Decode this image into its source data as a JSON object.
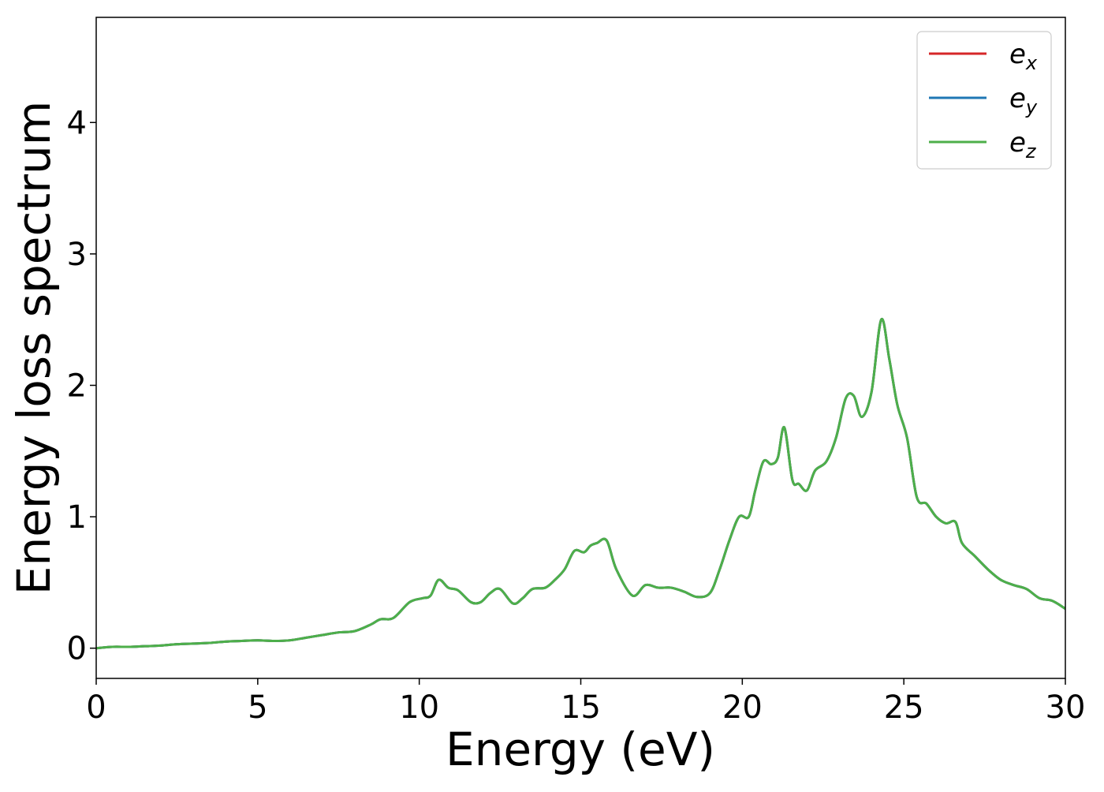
{
  "chart_data": {
    "type": "line",
    "title": "",
    "xlabel": "Energy (eV)",
    "ylabel": "Energy loss spectrum",
    "xlim": [
      0,
      30
    ],
    "ylim": [
      -0.23,
      4.8
    ],
    "xticks": [
      0,
      5,
      10,
      15,
      20,
      25,
      30
    ],
    "yticks": [
      0,
      1,
      2,
      3,
      4
    ],
    "grid": false,
    "legend_position": "top-right",
    "legend": [
      {
        "base": "e",
        "sub": "x",
        "color": "#d62728"
      },
      {
        "base": "e",
        "sub": "y",
        "color": "#1f77b4"
      },
      {
        "base": "e",
        "sub": "z",
        "color": "#4daf4a"
      }
    ],
    "series": [
      {
        "name": "e_x",
        "color": "#d62728",
        "x": [
          0,
          0.5,
          1,
          1.5,
          2,
          2.5,
          3,
          3.5,
          4,
          4.5,
          5,
          5.5,
          6,
          6.5,
          7,
          7.5,
          8,
          8.5,
          8.8,
          9.2,
          9.7,
          10.1,
          10.35,
          10.6,
          10.9,
          11.2,
          11.6,
          11.9,
          12.2,
          12.5,
          12.9,
          13.2,
          13.5,
          13.9,
          14.2,
          14.5,
          14.8,
          15.1,
          15.3,
          15.5,
          15.8,
          16.1,
          16.6,
          17.0,
          17.4,
          17.8,
          18.2,
          18.6,
          19.0,
          19.3,
          19.6,
          19.9,
          20.2,
          20.4,
          20.65,
          20.9,
          21.1,
          21.3,
          21.55,
          21.75,
          22.0,
          22.25,
          22.6,
          22.9,
          23.2,
          23.45,
          23.7,
          24.0,
          24.3,
          24.55,
          24.8,
          25.1,
          25.4,
          25.7,
          26.0,
          26.3,
          26.6,
          26.8,
          27.2,
          27.6,
          28.0,
          28.4,
          28.8,
          29.2,
          29.6,
          30.0
        ],
        "values": [
          0.0,
          0.01,
          0.01,
          0.015,
          0.02,
          0.03,
          0.035,
          0.04,
          0.05,
          0.055,
          0.06,
          0.055,
          0.06,
          0.08,
          0.1,
          0.12,
          0.13,
          0.18,
          0.22,
          0.23,
          0.35,
          0.38,
          0.4,
          0.52,
          0.46,
          0.44,
          0.35,
          0.35,
          0.42,
          0.45,
          0.34,
          0.38,
          0.45,
          0.46,
          0.52,
          0.6,
          0.74,
          0.73,
          0.78,
          0.8,
          0.82,
          0.6,
          0.4,
          0.48,
          0.46,
          0.46,
          0.43,
          0.39,
          0.42,
          0.6,
          0.82,
          1.0,
          1.0,
          1.2,
          1.42,
          1.4,
          1.45,
          1.68,
          1.28,
          1.25,
          1.2,
          1.35,
          1.42,
          1.6,
          1.9,
          1.92,
          1.76,
          1.95,
          2.5,
          2.2,
          1.85,
          1.6,
          1.15,
          1.1,
          1.0,
          0.95,
          0.96,
          0.8,
          0.7,
          0.6,
          0.52,
          0.48,
          0.45,
          0.38,
          0.36,
          0.3
        ]
      },
      {
        "name": "e_y",
        "color": "#1f77b4",
        "x": [
          0,
          0.5,
          1,
          1.5,
          2,
          2.5,
          3,
          3.5,
          4,
          4.5,
          5,
          5.5,
          6,
          6.5,
          7,
          7.5,
          8,
          8.5,
          8.8,
          9.2,
          9.7,
          10.1,
          10.35,
          10.6,
          10.9,
          11.2,
          11.6,
          11.9,
          12.2,
          12.5,
          12.9,
          13.2,
          13.5,
          13.9,
          14.2,
          14.5,
          14.8,
          15.1,
          15.3,
          15.5,
          15.8,
          16.1,
          16.6,
          17.0,
          17.4,
          17.8,
          18.2,
          18.6,
          19.0,
          19.3,
          19.6,
          19.9,
          20.2,
          20.4,
          20.65,
          20.9,
          21.1,
          21.3,
          21.55,
          21.75,
          22.0,
          22.25,
          22.6,
          22.9,
          23.2,
          23.45,
          23.7,
          24.0,
          24.3,
          24.55,
          24.8,
          25.1,
          25.4,
          25.7,
          26.0,
          26.3,
          26.6,
          26.8,
          27.2,
          27.6,
          28.0,
          28.4,
          28.8,
          29.2,
          29.6,
          30.0
        ],
        "values": [
          0.0,
          0.01,
          0.01,
          0.015,
          0.02,
          0.03,
          0.035,
          0.04,
          0.05,
          0.055,
          0.06,
          0.055,
          0.06,
          0.08,
          0.1,
          0.12,
          0.13,
          0.18,
          0.22,
          0.23,
          0.35,
          0.38,
          0.4,
          0.52,
          0.46,
          0.44,
          0.35,
          0.35,
          0.42,
          0.45,
          0.34,
          0.38,
          0.45,
          0.46,
          0.52,
          0.6,
          0.74,
          0.73,
          0.78,
          0.8,
          0.82,
          0.6,
          0.4,
          0.48,
          0.46,
          0.46,
          0.43,
          0.39,
          0.42,
          0.6,
          0.82,
          1.0,
          1.0,
          1.2,
          1.42,
          1.4,
          1.45,
          1.68,
          1.28,
          1.25,
          1.2,
          1.35,
          1.42,
          1.6,
          1.9,
          1.92,
          1.76,
          1.95,
          2.5,
          2.2,
          1.85,
          1.6,
          1.15,
          1.1,
          1.0,
          0.95,
          0.96,
          0.8,
          0.7,
          0.6,
          0.52,
          0.48,
          0.45,
          0.38,
          0.36,
          0.3
        ]
      },
      {
        "name": "e_z",
        "color": "#4daf4a",
        "x": [
          0,
          0.5,
          1,
          1.5,
          2,
          2.5,
          3,
          3.5,
          4,
          4.5,
          5,
          5.5,
          6,
          6.5,
          7,
          7.5,
          8,
          8.5,
          8.8,
          9.2,
          9.7,
          10.1,
          10.35,
          10.6,
          10.9,
          11.2,
          11.6,
          11.9,
          12.2,
          12.5,
          12.9,
          13.2,
          13.5,
          13.9,
          14.2,
          14.5,
          14.8,
          15.1,
          15.3,
          15.5,
          15.8,
          16.1,
          16.6,
          17.0,
          17.4,
          17.8,
          18.2,
          18.6,
          19.0,
          19.3,
          19.6,
          19.9,
          20.2,
          20.4,
          20.65,
          20.9,
          21.1,
          21.3,
          21.55,
          21.75,
          22.0,
          22.25,
          22.6,
          22.9,
          23.2,
          23.45,
          23.7,
          24.0,
          24.3,
          24.55,
          24.8,
          25.1,
          25.4,
          25.7,
          26.0,
          26.3,
          26.6,
          26.8,
          27.2,
          27.6,
          28.0,
          28.4,
          28.8,
          29.2,
          29.6,
          30.0
        ],
        "values": [
          0.0,
          0.01,
          0.01,
          0.015,
          0.02,
          0.03,
          0.035,
          0.04,
          0.05,
          0.055,
          0.06,
          0.055,
          0.06,
          0.08,
          0.1,
          0.12,
          0.13,
          0.18,
          0.22,
          0.23,
          0.35,
          0.38,
          0.4,
          0.52,
          0.46,
          0.44,
          0.35,
          0.35,
          0.42,
          0.45,
          0.34,
          0.38,
          0.45,
          0.46,
          0.52,
          0.6,
          0.74,
          0.73,
          0.78,
          0.8,
          0.82,
          0.6,
          0.4,
          0.48,
          0.46,
          0.46,
          0.43,
          0.39,
          0.42,
          0.6,
          0.82,
          1.0,
          1.0,
          1.2,
          1.42,
          1.4,
          1.45,
          1.68,
          1.28,
          1.25,
          1.2,
          1.35,
          1.42,
          1.6,
          1.9,
          1.92,
          1.76,
          1.95,
          2.5,
          2.2,
          1.85,
          1.6,
          1.15,
          1.1,
          1.0,
          0.95,
          0.96,
          0.8,
          0.7,
          0.6,
          0.52,
          0.48,
          0.45,
          0.38,
          0.36,
          0.3
        ]
      }
    ]
  }
}
